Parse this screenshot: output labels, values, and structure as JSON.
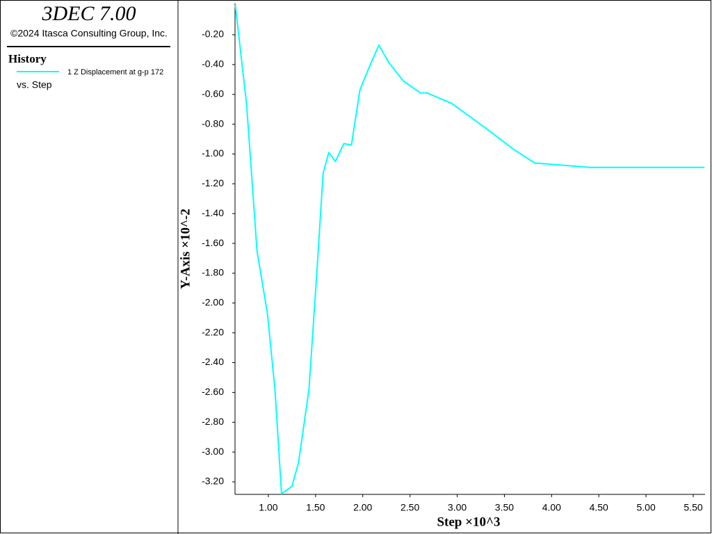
{
  "chart_data": {
    "type": "line",
    "title": "3DEC 7.00",
    "subtitle": "©2024 Itasca Consulting Group, Inc.",
    "legend_title": "History",
    "legend_note": "vs. Step",
    "x_label": "Step ×10^3",
    "y_label": "Y-Axis ×10^-2",
    "x": [
      0.65,
      0.77,
      0.88,
      0.99,
      1.07,
      1.14,
      1.25,
      1.32,
      1.43,
      1.51,
      1.58,
      1.64,
      1.71,
      1.8,
      1.88,
      1.97,
      2.06,
      2.17,
      2.28,
      2.43,
      2.61,
      2.68,
      2.94,
      3.31,
      3.6,
      3.82,
      4.41,
      5.62
    ],
    "series": [
      {
        "name": "1 Z Displacement at g-p 172",
        "color": "#00ffff",
        "values": [
          0.0,
          -0.67,
          -1.65,
          -2.07,
          -2.58,
          -3.28,
          -3.23,
          -3.07,
          -2.58,
          -1.83,
          -1.13,
          -0.99,
          -1.05,
          -0.93,
          -0.94,
          -0.57,
          -0.43,
          -0.27,
          -0.39,
          -0.51,
          -0.59,
          -0.59,
          -0.66,
          -0.83,
          -0.97,
          -1.06,
          -1.09,
          -1.09
        ]
      }
    ],
    "xlim": [
      0.647,
      5.625
    ],
    "ylim": [
      -3.284,
      0.01
    ],
    "xticks": [
      {
        "value": 1,
        "label": "1.00"
      },
      {
        "value": 1.5,
        "label": "1.50"
      },
      {
        "value": 2,
        "label": "2.00"
      },
      {
        "value": 2.5,
        "label": "2.50"
      },
      {
        "value": 3,
        "label": "3.00"
      },
      {
        "value": 3.5,
        "label": "3.50"
      },
      {
        "value": 4,
        "label": "4.00"
      },
      {
        "value": 4.5,
        "label": "4.50"
      },
      {
        "value": 5,
        "label": "5.00"
      },
      {
        "value": 5.5,
        "label": "5.50"
      }
    ],
    "yticks": [
      {
        "value": -0.2,
        "label": "-0.20"
      },
      {
        "value": -0.4,
        "label": "-0.40"
      },
      {
        "value": -0.6,
        "label": "-0.60"
      },
      {
        "value": -0.8,
        "label": "-0.80"
      },
      {
        "value": -1.0,
        "label": "-1.00"
      },
      {
        "value": -1.2,
        "label": "-1.20"
      },
      {
        "value": -1.4,
        "label": "-1.40"
      },
      {
        "value": -1.6,
        "label": "-1.60"
      },
      {
        "value": -1.8,
        "label": "-1.80"
      },
      {
        "value": -2.0,
        "label": "-2.00"
      },
      {
        "value": -2.2,
        "label": "-2.20"
      },
      {
        "value": -2.4,
        "label": "-2.40"
      },
      {
        "value": -2.6,
        "label": "-2.60"
      },
      {
        "value": -2.8,
        "label": "-2.80"
      },
      {
        "value": -3.0,
        "label": "-3.00"
      },
      {
        "value": -3.2,
        "label": "-3.20"
      }
    ],
    "grid": false
  }
}
